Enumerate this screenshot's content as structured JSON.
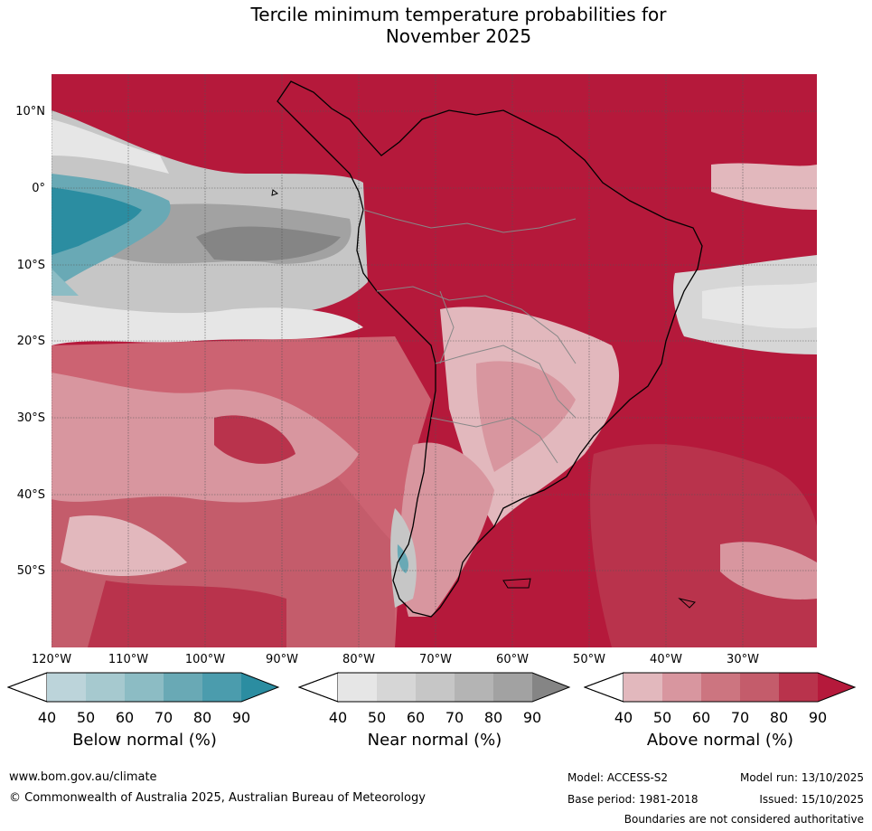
{
  "title_line1": "Tercile minimum temperature probabilities for",
  "title_line2": "November 2025",
  "lat_labels": [
    "10°N",
    "0°",
    "10°S",
    "20°S",
    "30°S",
    "40°S",
    "50°S"
  ],
  "lon_labels": [
    "120°W",
    "110°W",
    "100°W",
    "90°W",
    "80°W",
    "70°W",
    "60°W",
    "50°W",
    "40°W",
    "30°W"
  ],
  "colorbars": [
    {
      "name": "below",
      "caption": "Below normal (%)",
      "ticks": [
        "40",
        "50",
        "60",
        "70",
        "80",
        "90"
      ],
      "colors": [
        "#ffffff",
        "#bcd4da",
        "#a6c9cf",
        "#8cbcc4",
        "#69a9b5",
        "#4b9cad",
        "#2b8da1"
      ]
    },
    {
      "name": "near",
      "caption": "Near normal (%)",
      "ticks": [
        "40",
        "50",
        "60",
        "70",
        "80",
        "90"
      ],
      "colors": [
        "#ffffff",
        "#e6e6e6",
        "#d6d6d6",
        "#c6c6c6",
        "#b4b4b4",
        "#a2a2a2",
        "#858585"
      ]
    },
    {
      "name": "above",
      "caption": "Above normal (%)",
      "ticks": [
        "40",
        "50",
        "60",
        "70",
        "80",
        "90"
      ],
      "colors": [
        "#ffffff",
        "#e2b8bd",
        "#d8969f",
        "#cc7580",
        "#c45c6b",
        "#b9334c",
        "#b5193b"
      ]
    }
  ],
  "footer": {
    "website": "www.bom.gov.au/climate",
    "copyright": "© Commonwealth of Australia 2025, Australian Bureau of Meteorology",
    "model": "Model: ACCESS-S2",
    "model_run": "Model run: 13/10/2025",
    "base_period": "Base period: 1981-2018",
    "issued": "Issued: 15/10/2025",
    "disclaimer": "Boundaries are not considered authoritative"
  }
}
